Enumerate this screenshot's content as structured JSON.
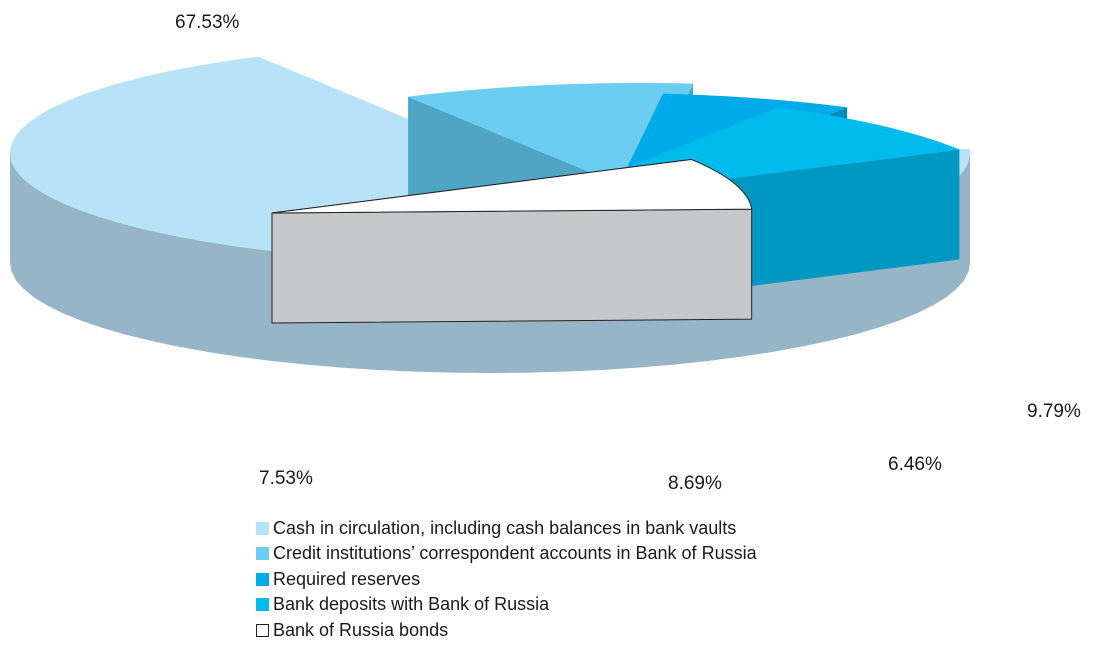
{
  "chart_data": {
    "type": "pie",
    "three_d": true,
    "exploded": true,
    "title": "",
    "series": [
      {
        "name": "Cash in circulation, including cash balances in bank vaults",
        "value": 67.53,
        "label": "67.53%",
        "color": "#b8e3f7",
        "side_color": "#96b6c8"
      },
      {
        "name": "Credit institutions’ correspondent accounts in Bank of Russia",
        "value": 9.79,
        "label": "9.79%",
        "color": "#6ccdf2",
        "side_color": "#4fa5c4"
      },
      {
        "name": "Required reserves",
        "value": 6.46,
        "label": "6.46%",
        "color": "#00abe9",
        "side_color": "#0089bf"
      },
      {
        "name": "Bank deposits with Bank of Russia",
        "value": 8.69,
        "label": "8.69%",
        "color": "#00bbec",
        "side_color": "#0098c2"
      },
      {
        "name": "Bank of Russia  bonds",
        "value": 7.53,
        "label": "7.53%",
        "color": "#ffffff",
        "side_color": "#c7c8ca",
        "outline": "#222222"
      }
    ],
    "legend_position": "bottom"
  }
}
